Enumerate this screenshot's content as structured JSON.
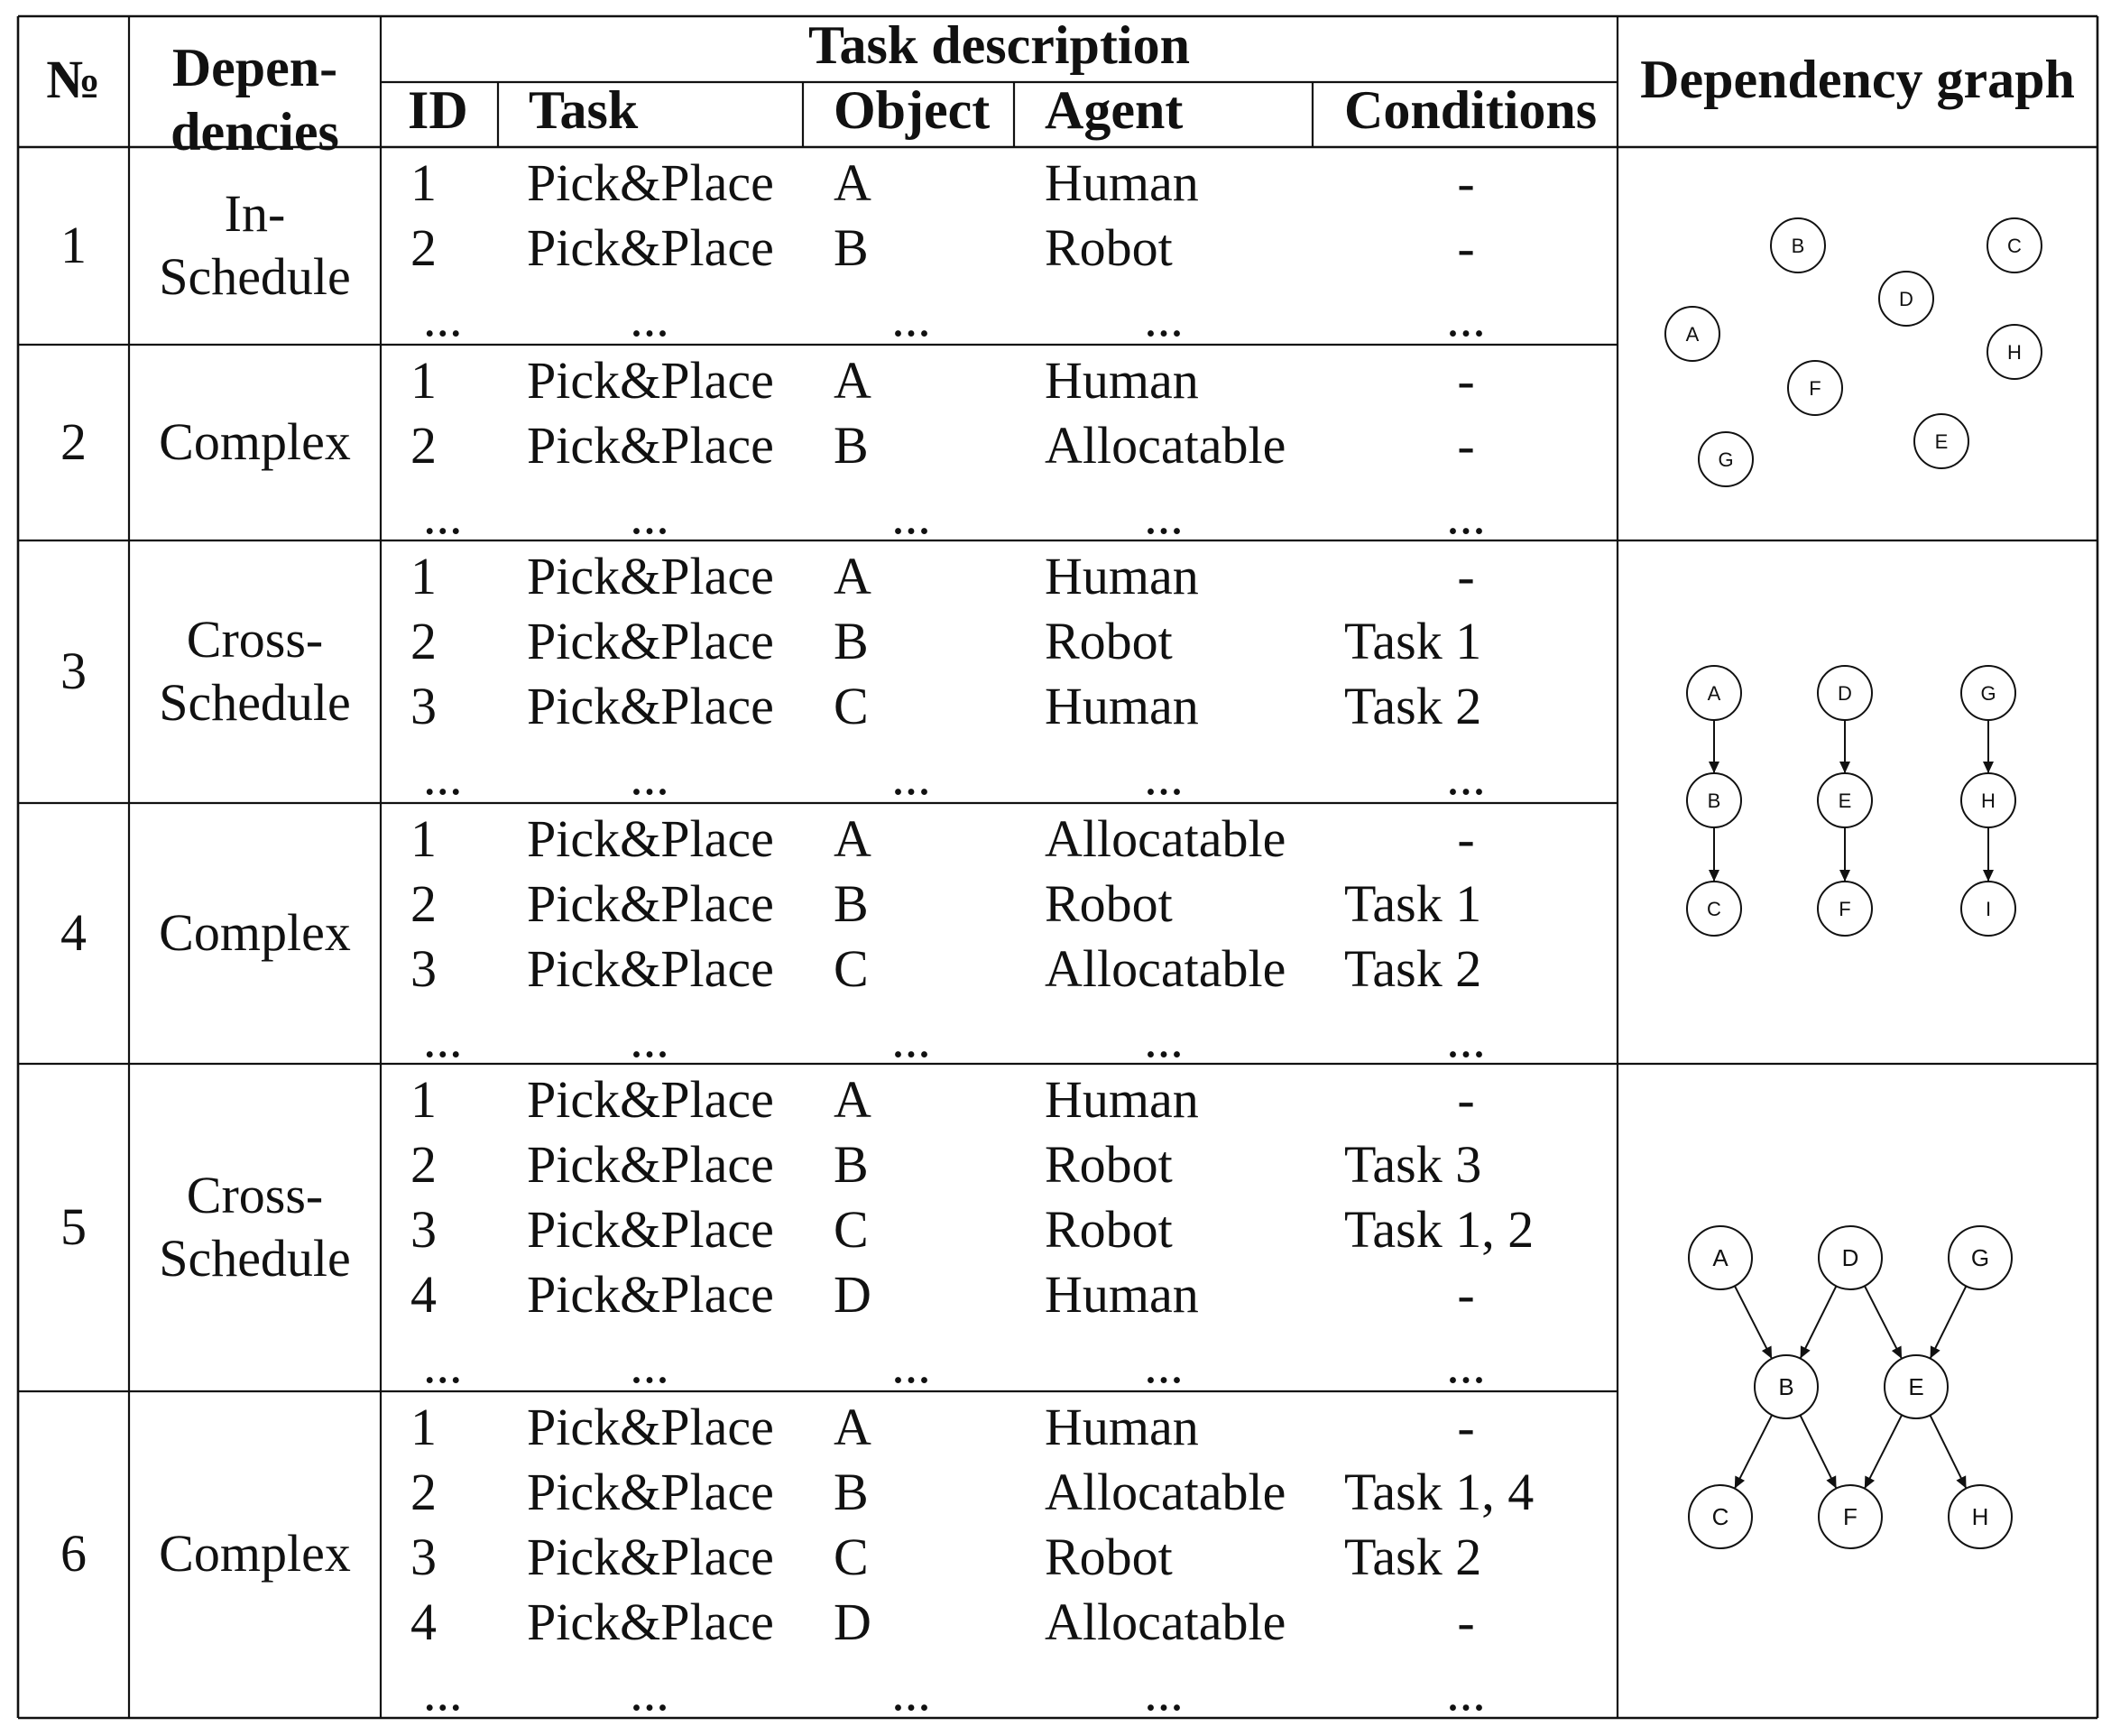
{
  "header": {
    "num": "№",
    "dependencies_line1": "Depen-",
    "dependencies_line2": "dencies",
    "task_description": "Task description",
    "id": "ID",
    "task": "Task",
    "object": "Object",
    "agent": "Agent",
    "conditions": "Conditions",
    "dependency_graph": "Dependency graph"
  },
  "groups": [
    {
      "num": "1",
      "dep": [
        "In-",
        "Schedule"
      ],
      "rows": [
        {
          "id": "1",
          "task": "Pick&Place",
          "object": "A",
          "agent": "Human",
          "cond": "-"
        },
        {
          "id": "2",
          "task": "Pick&Place",
          "object": "B",
          "agent": "Robot",
          "cond": "-"
        },
        {
          "id": "...",
          "task": "...",
          "object": "...",
          "agent": "...",
          "cond": "..."
        }
      ]
    },
    {
      "num": "2",
      "dep": [
        "Complex"
      ],
      "rows": [
        {
          "id": "1",
          "task": "Pick&Place",
          "object": "A",
          "agent": "Human",
          "cond": "-"
        },
        {
          "id": "2",
          "task": "Pick&Place",
          "object": "B",
          "agent": "Allocatable",
          "cond": "-"
        },
        {
          "id": "...",
          "task": "...",
          "object": "...",
          "agent": "...",
          "cond": "..."
        }
      ]
    },
    {
      "num": "3",
      "dep": [
        "Cross-",
        "Schedule"
      ],
      "rows": [
        {
          "id": "1",
          "task": "Pick&Place",
          "object": "A",
          "agent": "Human",
          "cond": "-"
        },
        {
          "id": "2",
          "task": "Pick&Place",
          "object": "B",
          "agent": "Robot",
          "cond": "Task 1"
        },
        {
          "id": "3",
          "task": "Pick&Place",
          "object": "C",
          "agent": "Human",
          "cond": "Task 2"
        },
        {
          "id": "...",
          "task": "...",
          "object": "...",
          "agent": "...",
          "cond": "..."
        }
      ]
    },
    {
      "num": "4",
      "dep": [
        "Complex"
      ],
      "rows": [
        {
          "id": "1",
          "task": "Pick&Place",
          "object": "A",
          "agent": "Allocatable",
          "cond": "-"
        },
        {
          "id": "2",
          "task": "Pick&Place",
          "object": "B",
          "agent": "Robot",
          "cond": "Task 1"
        },
        {
          "id": "3",
          "task": "Pick&Place",
          "object": "C",
          "agent": "Allocatable",
          "cond": "Task 2"
        },
        {
          "id": "...",
          "task": "...",
          "object": "...",
          "agent": "...",
          "cond": "..."
        }
      ]
    },
    {
      "num": "5",
      "dep": [
        "Cross-",
        "Schedule"
      ],
      "rows": [
        {
          "id": "1",
          "task": "Pick&Place",
          "object": "A",
          "agent": "Human",
          "cond": "-"
        },
        {
          "id": "2",
          "task": "Pick&Place",
          "object": "B",
          "agent": "Robot",
          "cond": "Task 3"
        },
        {
          "id": "3",
          "task": "Pick&Place",
          "object": "C",
          "agent": "Robot",
          "cond": "Task 1, 2"
        },
        {
          "id": "4",
          "task": "Pick&Place",
          "object": "D",
          "agent": "Human",
          "cond": "-"
        },
        {
          "id": "...",
          "task": "...",
          "object": "...",
          "agent": "...",
          "cond": "..."
        }
      ]
    },
    {
      "num": "6",
      "dep": [
        "Complex"
      ],
      "rows": [
        {
          "id": "1",
          "task": "Pick&Place",
          "object": "A",
          "agent": "Human",
          "cond": "-"
        },
        {
          "id": "2",
          "task": "Pick&Place",
          "object": "B",
          "agent": "Allocatable",
          "cond": "Task 1, 4"
        },
        {
          "id": "3",
          "task": "Pick&Place",
          "object": "C",
          "agent": "Robot",
          "cond": "Task 2"
        },
        {
          "id": "4",
          "task": "Pick&Place",
          "object": "D",
          "agent": "Allocatable",
          "cond": "-"
        },
        {
          "id": "...",
          "task": "...",
          "object": "...",
          "agent": "...",
          "cond": "..."
        }
      ]
    }
  ],
  "graphs": [
    {
      "nodes": [
        "A",
        "B",
        "C",
        "D",
        "E",
        "F",
        "G",
        "H"
      ],
      "edges": []
    },
    {
      "nodes": [
        "A",
        "B",
        "C",
        "D",
        "E",
        "F",
        "G",
        "H",
        "I"
      ],
      "edges": [
        [
          "A",
          "B"
        ],
        [
          "B",
          "C"
        ],
        [
          "D",
          "E"
        ],
        [
          "E",
          "F"
        ],
        [
          "G",
          "H"
        ],
        [
          "H",
          "I"
        ]
      ]
    },
    {
      "nodes": [
        "A",
        "B",
        "C",
        "D",
        "E",
        "F",
        "G",
        "H"
      ],
      "edges": [
        [
          "A",
          "B"
        ],
        [
          "D",
          "B"
        ],
        [
          "D",
          "E"
        ],
        [
          "G",
          "E"
        ],
        [
          "B",
          "C"
        ],
        [
          "B",
          "F"
        ],
        [
          "E",
          "F"
        ],
        [
          "E",
          "H"
        ]
      ]
    }
  ]
}
